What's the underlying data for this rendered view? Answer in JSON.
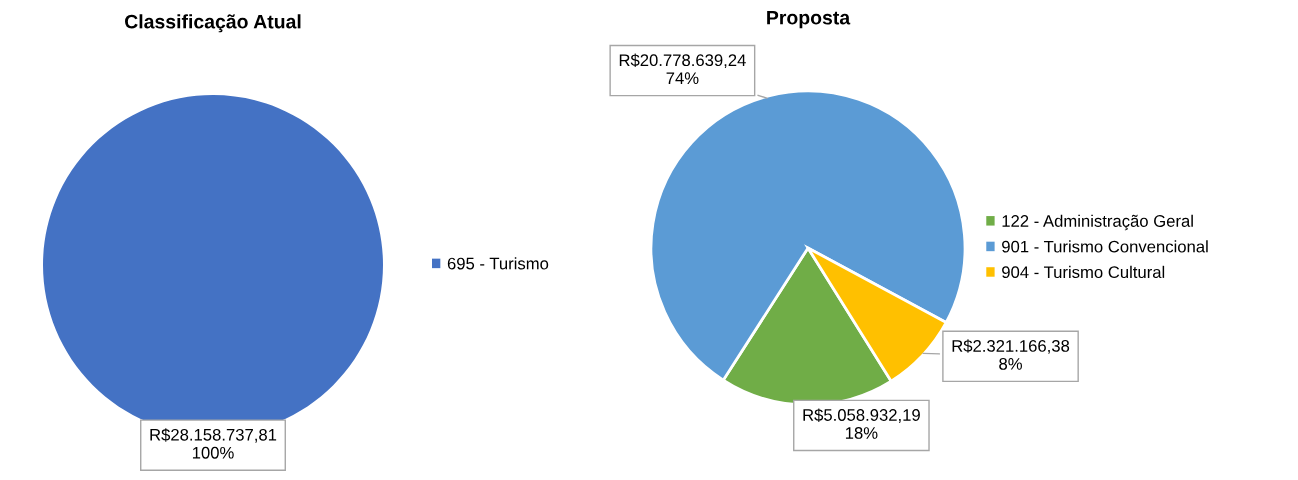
{
  "chart_data": [
    {
      "type": "pie",
      "title": "Classificação Atual",
      "categories": [
        "695 - Turismo"
      ],
      "values": [
        28158737.81
      ],
      "colors": [
        "#4472c4"
      ],
      "value_labels": [
        "R$28.158.737,81\n100%"
      ],
      "legend": "right"
    },
    {
      "type": "pie",
      "title": "Proposta",
      "categories": [
        "122 - Administração Geral",
        "901 - Turismo Convencional",
        "904 - Turismo Cultural"
      ],
      "values": [
        5058932.19,
        20778639.24,
        2321166.38
      ],
      "colors": [
        "#70ad47",
        "#5b9bd5",
        "#ffc000"
      ],
      "value_labels": [
        "R$5.058.932,19\n18%",
        "R$20.778.639,24\n74%",
        "R$2.321.166,38\n8%"
      ],
      "legend": "right"
    }
  ]
}
